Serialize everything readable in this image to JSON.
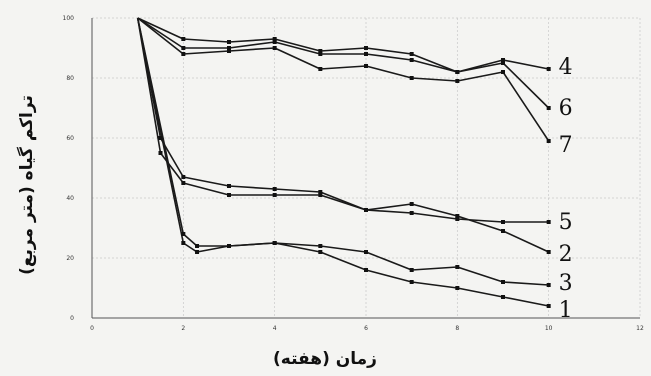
{
  "chart_data": {
    "type": "line",
    "xlabel": "زمان (هفته)",
    "ylabel": "تراکم گیاه (متر مربع)",
    "xlim": [
      0,
      12
    ],
    "ylim": [
      0,
      100
    ],
    "x_ticks": [
      0,
      2,
      4,
      6,
      8,
      10,
      12
    ],
    "y_ticks": [
      0,
      20,
      40,
      60,
      80,
      100
    ],
    "grid": true,
    "series": [
      {
        "name": "4",
        "x": [
          1,
          2,
          3,
          4,
          5,
          6,
          7,
          8,
          9,
          10
        ],
        "y": [
          100,
          93,
          92,
          93,
          89,
          90,
          88,
          82,
          86,
          83
        ]
      },
      {
        "name": "6",
        "x": [
          1,
          2,
          3,
          4,
          5,
          6,
          7,
          8,
          9,
          10
        ],
        "y": [
          100,
          90,
          90,
          92,
          88,
          88,
          86,
          82,
          85,
          70
        ]
      },
      {
        "name": "7",
        "x": [
          1,
          2,
          3,
          4,
          5,
          6,
          7,
          8,
          9,
          10
        ],
        "y": [
          100,
          88,
          89,
          90,
          83,
          84,
          80,
          79,
          82,
          59
        ]
      },
      {
        "name": "5",
        "x": [
          1,
          1.5,
          2,
          3,
          4,
          5,
          6,
          7,
          8,
          9,
          10
        ],
        "y": [
          100,
          60,
          47,
          44,
          43,
          42,
          36,
          35,
          33,
          32,
          32
        ]
      },
      {
        "name": "2",
        "x": [
          1,
          1.5,
          2,
          3,
          4,
          5,
          6,
          7,
          8,
          9,
          10
        ],
        "y": [
          100,
          55,
          45,
          41,
          41,
          41,
          36,
          38,
          34,
          29,
          22
        ]
      },
      {
        "name": "3",
        "x": [
          1,
          2,
          2.3,
          3,
          4,
          5,
          6,
          7,
          8,
          9,
          10
        ],
        "y": [
          100,
          28,
          24,
          24,
          25,
          24,
          22,
          16,
          17,
          12,
          11
        ]
      },
      {
        "name": "1",
        "x": [
          1,
          2,
          2.3,
          3,
          4,
          5,
          6,
          7,
          8,
          9,
          10
        ],
        "y": [
          100,
          25,
          22,
          24,
          25,
          22,
          16,
          12,
          10,
          7,
          4
        ]
      }
    ]
  }
}
